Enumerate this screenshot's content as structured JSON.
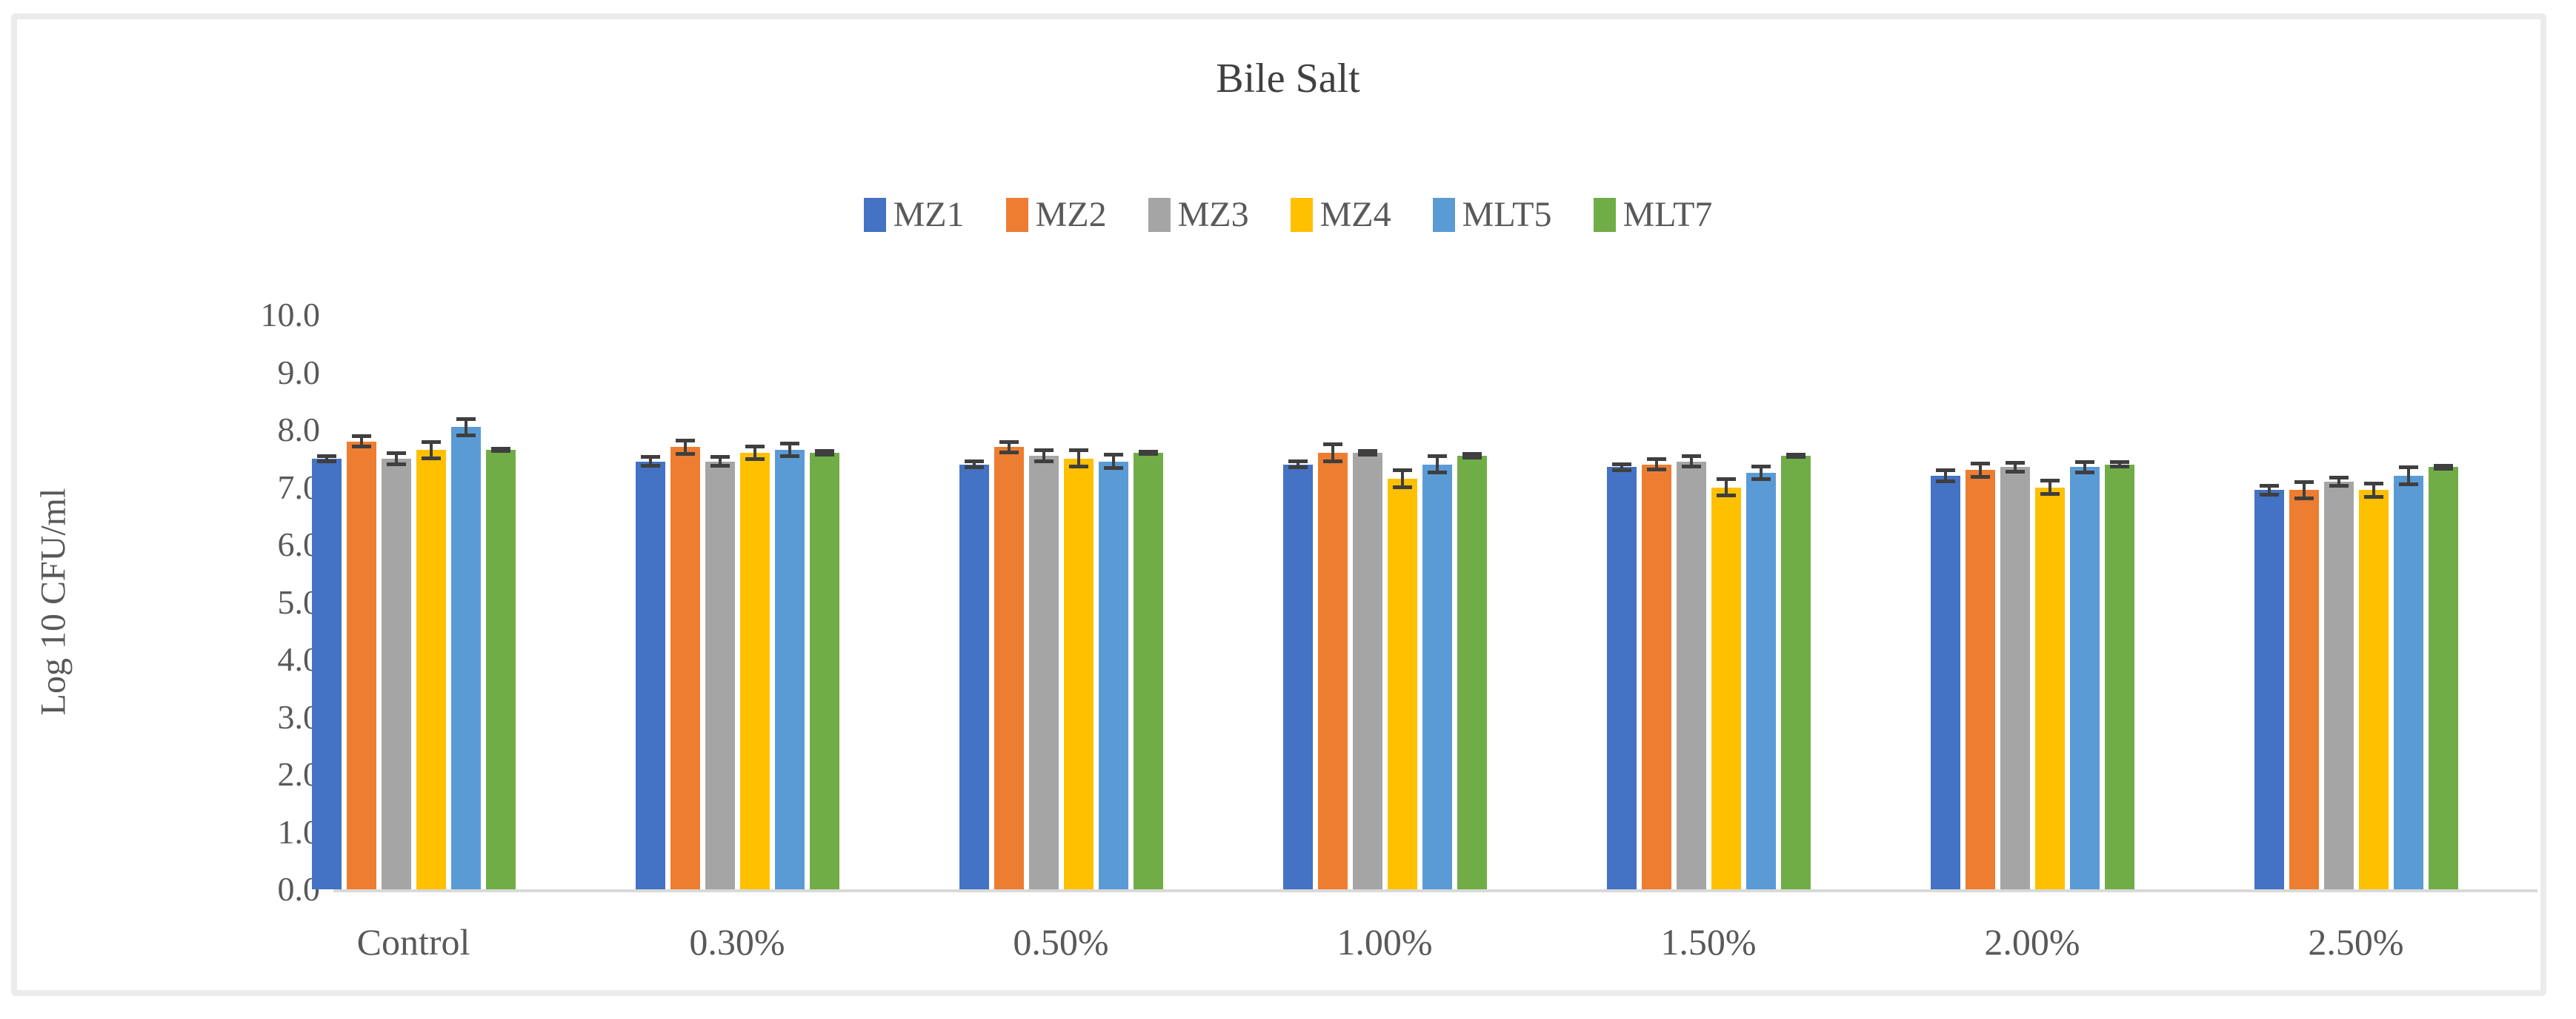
{
  "figure": {
    "frame_color": "#ebebeb",
    "background": "#ffffff",
    "text_color": "#595959",
    "title_color": "#404040",
    "axis_line_color": "#d9d9d9",
    "error_bar_color": "#3f3f3f"
  },
  "chart_data": {
    "type": "bar",
    "title": "Bile Salt",
    "xlabel": "",
    "ylabel": "Log 10 CFU/ml",
    "ylim": [
      0,
      10
    ],
    "ytick_step": 1.0,
    "ytick_labels": [
      "0.0",
      "1.0",
      "2.0",
      "3.0",
      "4.0",
      "5.0",
      "6.0",
      "7.0",
      "8.0",
      "9.0",
      "10.0"
    ],
    "grid": false,
    "legend_position": "top-center",
    "error_bars": true,
    "categories": [
      "Control",
      "0.30%",
      "0.50%",
      "1.00%",
      "1.50%",
      "2.00%",
      "2.50%"
    ],
    "series": [
      {
        "name": "MZ1",
        "color": "#4472C4",
        "values": [
          7.5,
          7.45,
          7.4,
          7.4,
          7.35,
          7.2,
          6.95
        ],
        "errors": [
          0.05,
          0.08,
          0.06,
          0.06,
          0.06,
          0.1,
          0.08
        ]
      },
      {
        "name": "MZ2",
        "color": "#ED7D31",
        "values": [
          7.8,
          7.7,
          7.7,
          7.6,
          7.4,
          7.3,
          6.95
        ],
        "errors": [
          0.1,
          0.12,
          0.1,
          0.15,
          0.1,
          0.12,
          0.15
        ]
      },
      {
        "name": "MZ3",
        "color": "#A5A5A5",
        "values": [
          7.5,
          7.45,
          7.55,
          7.6,
          7.45,
          7.35,
          7.1
        ],
        "errors": [
          0.1,
          0.08,
          0.1,
          0.04,
          0.1,
          0.08,
          0.08
        ]
      },
      {
        "name": "MZ4",
        "color": "#FFC000",
        "values": [
          7.65,
          7.6,
          7.5,
          7.15,
          7.0,
          7.0,
          6.95
        ],
        "errors": [
          0.15,
          0.12,
          0.15,
          0.15,
          0.15,
          0.12,
          0.12
        ]
      },
      {
        "name": "MLT5",
        "color": "#5B9BD5",
        "values": [
          8.05,
          7.65,
          7.45,
          7.4,
          7.25,
          7.35,
          7.2
        ],
        "errors": [
          0.15,
          0.12,
          0.12,
          0.15,
          0.12,
          0.1,
          0.15
        ]
      },
      {
        "name": "MLT7",
        "color": "#70AD47",
        "values": [
          7.65,
          7.6,
          7.6,
          7.55,
          7.55,
          7.4,
          7.35
        ],
        "errors": [
          0.03,
          0.04,
          0.03,
          0.04,
          0.03,
          0.04,
          0.03
        ]
      }
    ]
  }
}
